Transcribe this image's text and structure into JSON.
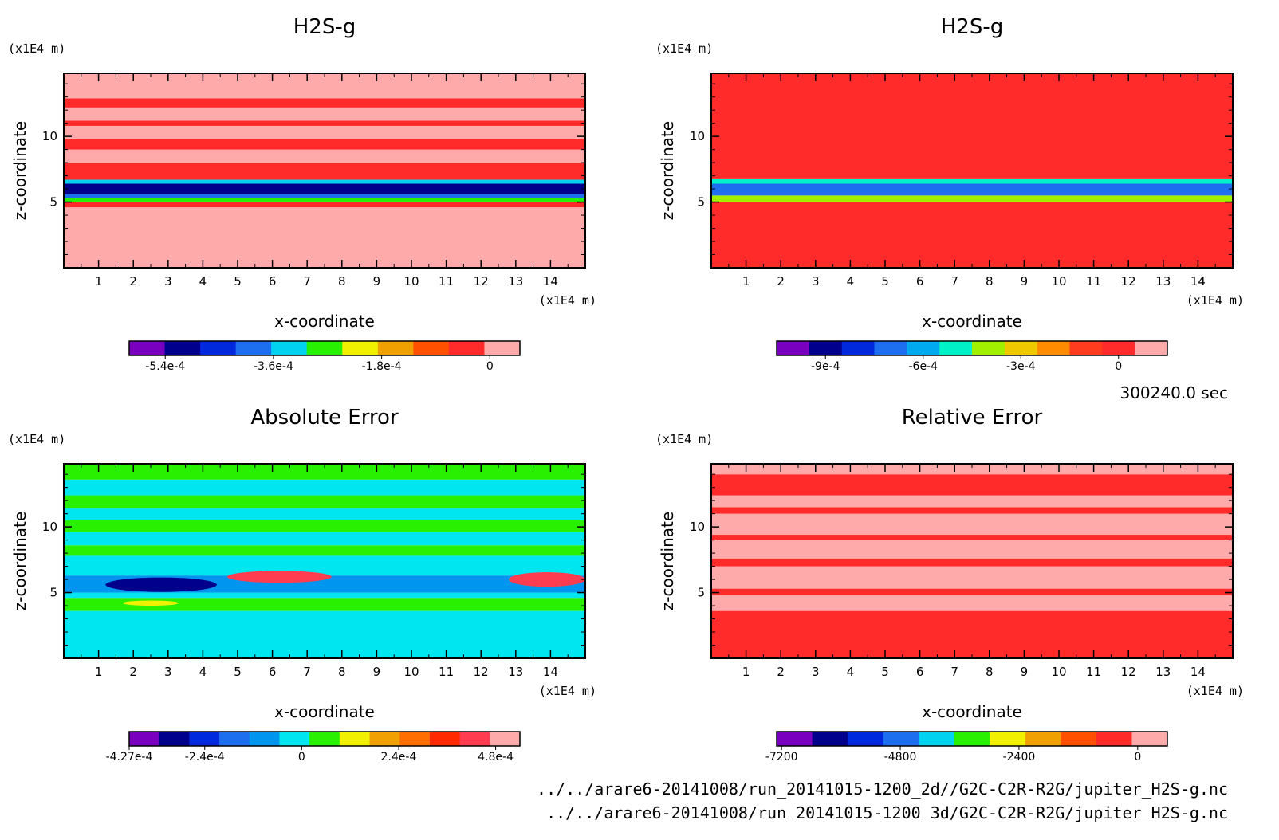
{
  "chart_data": [
    {
      "type": "heatmap",
      "title": "H2S-g",
      "xlabel": "x-coordinate",
      "ylabel": "z-coordinate",
      "x_unit": "(x1E4 m)",
      "y_unit": "(x1E4 m)",
      "xlim": [
        0,
        15
      ],
      "ylim": [
        0,
        14.8
      ],
      "x_ticks": [
        "1",
        "2",
        "3",
        "4",
        "5",
        "6",
        "7",
        "8",
        "9",
        "10",
        "11",
        "12",
        "13",
        "14"
      ],
      "y_ticks": [
        "5",
        "10"
      ],
      "colorbar": {
        "colors": [
          "#7a00c0",
          "#00008c",
          "#0028dc",
          "#1e6ef0",
          "#00d2f0",
          "#28f000",
          "#f0f000",
          "#f0a000",
          "#ff5000",
          "#ff2a2a",
          "#ffaaaa"
        ],
        "tick_labels": [
          "-5.4e-4",
          "-3.6e-4",
          "-1.8e-4",
          "0"
        ],
        "range": [
          -0.0006,
          5e-05
        ]
      },
      "layers": [
        {
          "z": [
            0,
            4.6
          ],
          "value_level": 10
        },
        {
          "z": [
            4.6,
            5.0
          ],
          "value_level": 9
        },
        {
          "z": [
            5.0,
            5.3
          ],
          "value_level": 5
        },
        {
          "z": [
            5.3,
            5.6
          ],
          "value_level": 3
        },
        {
          "z": [
            5.6,
            6.4
          ],
          "value_level": 1
        },
        {
          "z": [
            6.4,
            6.7
          ],
          "value_level": 4
        },
        {
          "z": [
            6.7,
            8.0
          ],
          "value_level": 9
        },
        {
          "z": [
            8.0,
            9.0
          ],
          "value_level": 10
        },
        {
          "z": [
            9.0,
            9.8
          ],
          "value_level": 9
        },
        {
          "z": [
            9.8,
            10.8
          ],
          "value_level": 10
        },
        {
          "z": [
            10.8,
            11.2
          ],
          "value_level": 9
        },
        {
          "z": [
            11.2,
            12.2
          ],
          "value_level": 10
        },
        {
          "z": [
            12.2,
            12.9
          ],
          "value_level": 9
        },
        {
          "z": [
            12.9,
            14.8
          ],
          "value_level": 10
        }
      ]
    },
    {
      "type": "heatmap",
      "title": "H2S-g",
      "xlabel": "x-coordinate",
      "ylabel": "z-coordinate",
      "x_unit": "(x1E4 m)",
      "y_unit": "(x1E4 m)",
      "xlim": [
        0,
        15
      ],
      "ylim": [
        0,
        14.8
      ],
      "x_ticks": [
        "1",
        "2",
        "3",
        "4",
        "5",
        "6",
        "7",
        "8",
        "9",
        "10",
        "11",
        "12",
        "13",
        "14"
      ],
      "y_ticks": [
        "5",
        "10"
      ],
      "colorbar": {
        "colors": [
          "#7a00c0",
          "#00008c",
          "#0028dc",
          "#1e6ef0",
          "#00aaf0",
          "#00f0c8",
          "#a0f000",
          "#f0c800",
          "#ff8c00",
          "#ff3c1e",
          "#ff2a2a",
          "#ffaaaa"
        ],
        "tick_labels": [
          "-9e-4",
          "-6e-4",
          "-3e-4",
          "0"
        ],
        "range": [
          -0.00105,
          0.00015
        ]
      },
      "layers": [
        {
          "z": [
            0,
            5.0
          ],
          "value_level": 10
        },
        {
          "z": [
            5.0,
            5.5
          ],
          "value_level": 6
        },
        {
          "z": [
            5.5,
            6.4
          ],
          "value_level": 3
        },
        {
          "z": [
            6.4,
            6.8
          ],
          "value_level": 5
        },
        {
          "z": [
            6.8,
            14.8
          ],
          "value_level": 10
        }
      ]
    },
    {
      "type": "heatmap",
      "title": "Absolute Error",
      "xlabel": "x-coordinate",
      "ylabel": "z-coordinate",
      "x_unit": "(x1E4 m)",
      "y_unit": "(x1E4 m)",
      "xlim": [
        0,
        15
      ],
      "ylim": [
        0,
        14.8
      ],
      "x_ticks": [
        "1",
        "2",
        "3",
        "4",
        "5",
        "6",
        "7",
        "8",
        "9",
        "10",
        "11",
        "12",
        "13",
        "14"
      ],
      "y_ticks": [
        "5",
        "10"
      ],
      "colorbar": {
        "colors": [
          "#7a00c0",
          "#00008c",
          "#0028dc",
          "#1e6ef0",
          "#0096f0",
          "#00e6f0",
          "#28f000",
          "#f0f000",
          "#f0a000",
          "#ff6e00",
          "#ff2a00",
          "#ff3c50",
          "#ffaaaa"
        ],
        "tick_labels": [
          "-4.27e-4",
          "-2.4e-4",
          "0",
          "2.4e-4",
          "4.8e-4"
        ],
        "range": [
          -0.000427,
          0.00054
        ]
      },
      "layers": [
        {
          "z": [
            0,
            3.6
          ],
          "value_level": 5
        },
        {
          "z": [
            3.6,
            4.6
          ],
          "value_level": 6
        },
        {
          "z": [
            4.6,
            5.0
          ],
          "value_level": 5
        },
        {
          "z": [
            5.0,
            6.3
          ],
          "value_level": 4
        },
        {
          "z": [
            6.3,
            7.8
          ],
          "value_level": 5
        },
        {
          "z": [
            7.8,
            8.6
          ],
          "value_level": 6
        },
        {
          "z": [
            8.6,
            9.6
          ],
          "value_level": 5
        },
        {
          "z": [
            9.6,
            10.5
          ],
          "value_level": 6
        },
        {
          "z": [
            10.5,
            11.4
          ],
          "value_level": 5
        },
        {
          "z": [
            11.4,
            12.4
          ],
          "value_level": 6
        },
        {
          "z": [
            12.4,
            13.6
          ],
          "value_level": 5
        },
        {
          "z": [
            13.6,
            14.8
          ],
          "value_level": 6
        }
      ],
      "blobs": [
        {
          "x": 2.8,
          "z": 5.6,
          "rx": 1.6,
          "rz": 0.55,
          "value_level": 1
        },
        {
          "x": 6.2,
          "z": 6.2,
          "rx": 1.5,
          "rz": 0.45,
          "value_level": 11
        },
        {
          "x": 13.9,
          "z": 6.0,
          "rx": 1.1,
          "rz": 0.55,
          "value_level": 11
        },
        {
          "x": 2.5,
          "z": 4.2,
          "rx": 0.8,
          "rz": 0.2,
          "value_level": 7
        }
      ]
    },
    {
      "type": "heatmap",
      "title": "Relative Error",
      "xlabel": "x-coordinate",
      "ylabel": "z-coordinate",
      "x_unit": "(x1E4 m)",
      "y_unit": "(x1E4 m)",
      "xlim": [
        0,
        15
      ],
      "ylim": [
        0,
        14.8
      ],
      "x_ticks": [
        "1",
        "2",
        "3",
        "4",
        "5",
        "6",
        "7",
        "8",
        "9",
        "10",
        "11",
        "12",
        "13",
        "14"
      ],
      "y_ticks": [
        "5",
        "10"
      ],
      "colorbar": {
        "colors": [
          "#7a00c0",
          "#00008c",
          "#0028dc",
          "#1e6ef0",
          "#00d2f0",
          "#28f000",
          "#f0f000",
          "#f0a000",
          "#ff5000",
          "#ff2a2a",
          "#ffaaaa"
        ],
        "tick_labels": [
          "-7200",
          "-4800",
          "-2400",
          "0"
        ],
        "range": [
          -7300,
          600
        ]
      },
      "layers": [
        {
          "z": [
            0,
            3.6
          ],
          "value_level": 9
        },
        {
          "z": [
            3.6,
            4.8
          ],
          "value_level": 10
        },
        {
          "z": [
            4.8,
            5.3
          ],
          "value_level": 9
        },
        {
          "z": [
            5.3,
            7.0
          ],
          "value_level": 10
        },
        {
          "z": [
            7.0,
            7.6
          ],
          "value_level": 9
        },
        {
          "z": [
            7.6,
            9.0
          ],
          "value_level": 10
        },
        {
          "z": [
            9.0,
            9.4
          ],
          "value_level": 9
        },
        {
          "z": [
            9.4,
            11.0
          ],
          "value_level": 10
        },
        {
          "z": [
            11.0,
            11.5
          ],
          "value_level": 9
        },
        {
          "z": [
            11.5,
            12.4
          ],
          "value_level": 10
        },
        {
          "z": [
            12.4,
            14.0
          ],
          "value_level": 9
        },
        {
          "z": [
            14.0,
            14.8
          ],
          "value_level": 10
        }
      ]
    }
  ],
  "time_label": "300240.0 sec",
  "footer": {
    "line1": "../../arare6-20141008/run_20141015-1200_2d//G2C-C2R-R2G/jupiter_H2S-g.nc",
    "line2": "../../arare6-20141008/run_20141015-1200_3d/G2C-C2R-R2G/jupiter_H2S-g.nc"
  }
}
